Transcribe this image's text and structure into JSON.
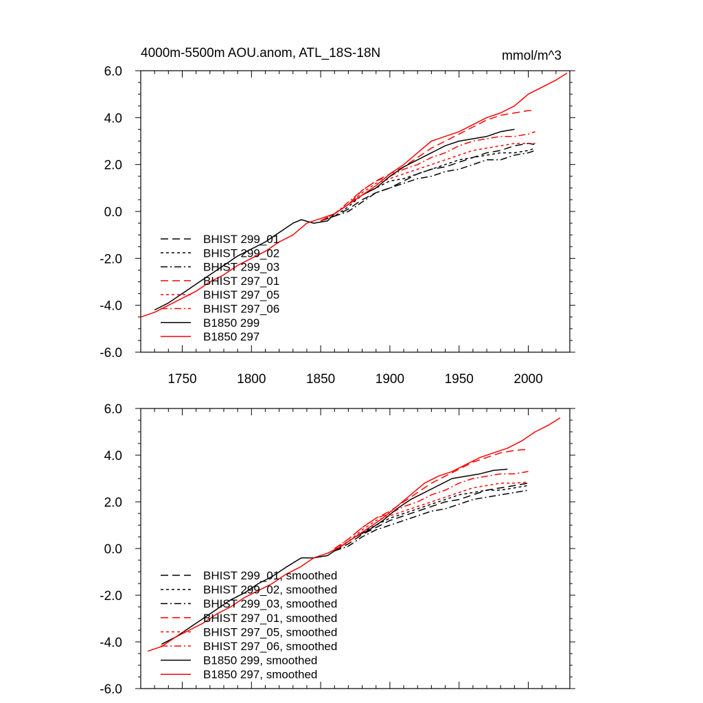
{
  "figure": {
    "title_left": "4000m-5500m AOU.anom, ATL_18S-18N",
    "title_right": "mmol/m^3"
  },
  "colors": {
    "black": "#000000",
    "red": "#ff0000"
  },
  "chart_data": [
    {
      "type": "line",
      "xlim": [
        1720,
        2030
      ],
      "ylim": [
        -6,
        6
      ],
      "xticks": [
        1750,
        1800,
        1850,
        1900,
        1950,
        2000
      ],
      "yticks": [
        -6,
        -4,
        -2,
        0,
        2,
        4,
        6
      ],
      "ytick_labels": [
        "-6.0",
        "-4.0",
        "-2.0",
        "0.0",
        "2.0",
        "4.0",
        "6.0"
      ],
      "xtick_labels": [
        "1750",
        "1800",
        "1850",
        "1900",
        "1950",
        "2000"
      ],
      "grid": false,
      "legend_position": "bottom-left",
      "series": [
        {
          "name": "BHIST 299_01",
          "color": "#000000",
          "dash": "long-dash",
          "x": [
            1850,
            1860,
            1870,
            1880,
            1890,
            1900,
            1910,
            1920,
            1930,
            1940,
            1950,
            1960,
            1970,
            1980,
            1990,
            2000,
            2005
          ],
          "y": [
            -0.4,
            -0.2,
            0.1,
            0.5,
            0.8,
            1.0,
            1.3,
            1.6,
            1.8,
            1.9,
            2.1,
            2.3,
            2.5,
            2.6,
            2.8,
            2.9,
            2.85
          ]
        },
        {
          "name": "BHIST 299_02",
          "color": "#000000",
          "dash": "short-dash",
          "x": [
            1850,
            1860,
            1870,
            1880,
            1890,
            1900,
            1910,
            1920,
            1930,
            1940,
            1950,
            1960,
            1970,
            1980,
            1990,
            2000,
            2005
          ],
          "y": [
            -0.4,
            -0.2,
            0.2,
            0.7,
            1.0,
            1.3,
            1.4,
            1.6,
            1.8,
            2.0,
            2.2,
            2.3,
            2.4,
            2.5,
            2.5,
            2.6,
            2.7
          ]
        },
        {
          "name": "BHIST 299_03",
          "color": "#000000",
          "dash": "dash-dot",
          "x": [
            1850,
            1860,
            1870,
            1880,
            1890,
            1900,
            1910,
            1920,
            1930,
            1940,
            1950,
            1960,
            1970,
            1980,
            1990,
            2000,
            2005
          ],
          "y": [
            -0.4,
            -0.2,
            0.0,
            0.4,
            0.8,
            1.0,
            1.2,
            1.4,
            1.5,
            1.7,
            1.8,
            2.0,
            2.2,
            2.2,
            2.4,
            2.5,
            2.6
          ]
        },
        {
          "name": "BHIST 297_01",
          "color": "#ff0000",
          "dash": "long-dash",
          "x": [
            1850,
            1860,
            1870,
            1880,
            1890,
            1900,
            1910,
            1920,
            1930,
            1940,
            1950,
            1960,
            1970,
            1980,
            1990,
            2000,
            2005
          ],
          "y": [
            -0.4,
            -0.1,
            0.3,
            0.9,
            1.3,
            1.6,
            1.9,
            2.3,
            2.7,
            3.0,
            3.3,
            3.6,
            3.9,
            4.1,
            4.2,
            4.3,
            4.3
          ]
        },
        {
          "name": "BHIST 297_05",
          "color": "#ff0000",
          "dash": "short-dash",
          "x": [
            1850,
            1860,
            1870,
            1880,
            1890,
            1900,
            1910,
            1920,
            1930,
            1940,
            1950,
            1960,
            1970,
            1980,
            1990,
            2000,
            2005
          ],
          "y": [
            -0.4,
            -0.1,
            0.3,
            0.8,
            1.2,
            1.4,
            1.6,
            1.8,
            2.0,
            2.2,
            2.4,
            2.6,
            2.7,
            2.8,
            2.9,
            2.9,
            2.9
          ]
        },
        {
          "name": "BHIST 297_06",
          "color": "#ff0000",
          "dash": "dash-dot",
          "x": [
            1850,
            1860,
            1870,
            1880,
            1890,
            1900,
            1910,
            1920,
            1930,
            1940,
            1950,
            1960,
            1970,
            1980,
            1990,
            2000,
            2005
          ],
          "y": [
            -0.4,
            -0.1,
            0.4,
            0.9,
            1.3,
            1.5,
            1.8,
            2.0,
            2.3,
            2.5,
            2.8,
            3.0,
            3.1,
            3.2,
            3.2,
            3.3,
            3.4
          ]
        },
        {
          "name": "B1850 299",
          "color": "#000000",
          "dash": "solid",
          "x": [
            1730,
            1740,
            1750,
            1760,
            1770,
            1780,
            1790,
            1800,
            1810,
            1820,
            1830,
            1836,
            1845,
            1855,
            1860,
            1870,
            1880,
            1890,
            1900,
            1910,
            1920,
            1930,
            1940,
            1950,
            1960,
            1970,
            1980,
            1990
          ],
          "y": [
            -4.2,
            -3.9,
            -3.5,
            -3.1,
            -2.7,
            -2.3,
            -1.9,
            -1.6,
            -1.3,
            -0.9,
            -0.5,
            -0.35,
            -0.5,
            -0.4,
            -0.1,
            0.3,
            0.7,
            1.0,
            1.5,
            1.9,
            2.2,
            2.5,
            2.8,
            3.0,
            3.1,
            3.2,
            3.4,
            3.5
          ]
        },
        {
          "name": "B1850 297",
          "color": "#ff0000",
          "dash": "solid",
          "x": [
            1720,
            1730,
            1740,
            1750,
            1760,
            1770,
            1780,
            1790,
            1800,
            1810,
            1820,
            1830,
            1840,
            1850,
            1860,
            1870,
            1880,
            1890,
            1900,
            1910,
            1920,
            1930,
            1940,
            1950,
            1960,
            1970,
            1980,
            1990,
            2000,
            2010,
            2020,
            2028
          ],
          "y": [
            -4.5,
            -4.3,
            -4.0,
            -3.7,
            -3.4,
            -3.0,
            -2.7,
            -2.3,
            -2.0,
            -1.7,
            -1.3,
            -1.0,
            -0.5,
            -0.3,
            -0.1,
            0.3,
            0.7,
            1.1,
            1.6,
            2.0,
            2.5,
            3.0,
            3.2,
            3.4,
            3.7,
            4.0,
            4.2,
            4.5,
            5.0,
            5.3,
            5.6,
            5.9
          ]
        }
      ]
    },
    {
      "type": "line",
      "xlim": [
        1720,
        2030
      ],
      "ylim": [
        -6,
        6
      ],
      "xticks": [
        1750,
        1800,
        1850,
        1900,
        1950,
        2000
      ],
      "yticks": [
        -6,
        -4,
        -2,
        0,
        2,
        4,
        6
      ],
      "ytick_labels": [
        "-6.0",
        "-4.0",
        "-2.0",
        "0.0",
        "2.0",
        "4.0",
        "6.0"
      ],
      "xtick_labels": [],
      "grid": false,
      "legend_position": "bottom-left",
      "series": [
        {
          "name": "BHIST 299_01, smoothed",
          "color": "#000000",
          "dash": "long-dash",
          "x": [
            1860,
            1870,
            1880,
            1890,
            1900,
            1910,
            1920,
            1930,
            1940,
            1950,
            1960,
            1970,
            1980,
            1990,
            2000
          ],
          "y": [
            -0.1,
            0.2,
            0.6,
            0.9,
            1.2,
            1.4,
            1.6,
            1.8,
            2.0,
            2.1,
            2.3,
            2.5,
            2.6,
            2.7,
            2.8
          ]
        },
        {
          "name": "BHIST 299_02, smoothed",
          "color": "#000000",
          "dash": "short-dash",
          "x": [
            1860,
            1870,
            1880,
            1890,
            1900,
            1910,
            1920,
            1930,
            1940,
            1950,
            1960,
            1970,
            1980,
            1990,
            2000
          ],
          "y": [
            -0.1,
            0.3,
            0.7,
            1.0,
            1.3,
            1.5,
            1.7,
            1.9,
            2.1,
            2.3,
            2.4,
            2.5,
            2.5,
            2.6,
            2.7
          ]
        },
        {
          "name": "BHIST 299_03, smoothed",
          "color": "#000000",
          "dash": "dash-dot",
          "x": [
            1860,
            1870,
            1880,
            1890,
            1900,
            1910,
            1920,
            1930,
            1940,
            1950,
            1960,
            1970,
            1980,
            1990,
            2000
          ],
          "y": [
            -0.1,
            0.1,
            0.5,
            0.8,
            1.0,
            1.2,
            1.4,
            1.6,
            1.7,
            1.9,
            2.1,
            2.2,
            2.3,
            2.4,
            2.5
          ]
        },
        {
          "name": "BHIST 297_01, smoothed",
          "color": "#ff0000",
          "dash": "long-dash",
          "x": [
            1860,
            1870,
            1880,
            1890,
            1900,
            1910,
            1920,
            1930,
            1940,
            1950,
            1960,
            1970,
            1980,
            1990,
            2000
          ],
          "y": [
            0.0,
            0.4,
            0.9,
            1.3,
            1.6,
            2.0,
            2.4,
            2.8,
            3.1,
            3.4,
            3.7,
            3.9,
            4.1,
            4.2,
            4.25
          ]
        },
        {
          "name": "BHIST 297_05, smoothed",
          "color": "#ff0000",
          "dash": "short-dash",
          "x": [
            1860,
            1870,
            1880,
            1890,
            1900,
            1910,
            1920,
            1930,
            1940,
            1950,
            1960,
            1970,
            1980,
            1990,
            2000
          ],
          "y": [
            0.0,
            0.3,
            0.8,
            1.2,
            1.4,
            1.6,
            1.8,
            2.0,
            2.2,
            2.4,
            2.6,
            2.7,
            2.8,
            2.8,
            2.85
          ]
        },
        {
          "name": "BHIST 297_06, smoothed",
          "color": "#ff0000",
          "dash": "dash-dot",
          "x": [
            1860,
            1870,
            1880,
            1890,
            1900,
            1910,
            1920,
            1930,
            1940,
            1950,
            1960,
            1970,
            1980,
            1990,
            2000
          ],
          "y": [
            0.0,
            0.4,
            0.9,
            1.3,
            1.5,
            1.8,
            2.0,
            2.3,
            2.5,
            2.8,
            3.0,
            3.1,
            3.2,
            3.2,
            3.3
          ]
        },
        {
          "name": "B1850 299, smoothed",
          "color": "#000000",
          "dash": "solid",
          "x": [
            1735,
            1745,
            1755,
            1765,
            1775,
            1785,
            1795,
            1805,
            1815,
            1825,
            1836,
            1845,
            1855,
            1865,
            1875,
            1885,
            1895,
            1905,
            1915,
            1925,
            1935,
            1945,
            1955,
            1965,
            1975,
            1985
          ],
          "y": [
            -4.1,
            -3.8,
            -3.4,
            -3.0,
            -2.6,
            -2.2,
            -1.9,
            -1.5,
            -1.2,
            -0.8,
            -0.4,
            -0.4,
            -0.3,
            0.1,
            0.5,
            0.8,
            1.2,
            1.7,
            2.1,
            2.4,
            2.7,
            3.0,
            3.1,
            3.2,
            3.35,
            3.4
          ]
        },
        {
          "name": "B1850 297, smoothed",
          "color": "#ff0000",
          "dash": "solid",
          "x": [
            1725,
            1735,
            1745,
            1755,
            1765,
            1775,
            1785,
            1795,
            1805,
            1815,
            1825,
            1835,
            1845,
            1855,
            1865,
            1875,
            1885,
            1895,
            1905,
            1915,
            1925,
            1935,
            1945,
            1955,
            1965,
            1975,
            1985,
            1995,
            2005,
            2015,
            2023
          ],
          "y": [
            -4.4,
            -4.2,
            -3.8,
            -3.5,
            -3.2,
            -2.8,
            -2.5,
            -2.1,
            -1.8,
            -1.5,
            -1.1,
            -0.8,
            -0.4,
            -0.2,
            0.1,
            0.5,
            0.9,
            1.3,
            1.8,
            2.3,
            2.8,
            3.1,
            3.3,
            3.6,
            3.9,
            4.1,
            4.3,
            4.6,
            5.0,
            5.3,
            5.6
          ]
        }
      ]
    }
  ]
}
